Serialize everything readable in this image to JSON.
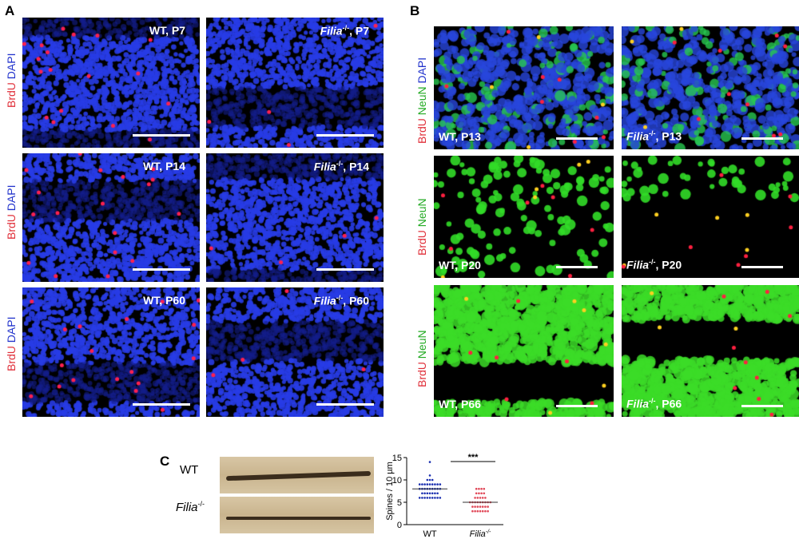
{
  "panelA": {
    "label": "A",
    "side": [
      "BrdU",
      "DAPI"
    ],
    "tiles": [
      {
        "g": "WT",
        "a": ", P7"
      },
      {
        "g": "Filia",
        "s": "-/-",
        "a": ", P7"
      },
      {
        "g": "WT",
        "a": ", P14"
      },
      {
        "g": "Filia",
        "s": "-/-",
        "a": ", P14"
      },
      {
        "g": "WT",
        "a": ", P60"
      },
      {
        "g": "Filia",
        "s": "-/-",
        "a": ", P60"
      }
    ]
  },
  "panelB": {
    "label": "B",
    "side1": [
      "BrdU",
      "NeuN",
      "DAPI"
    ],
    "side2": [
      "BrdU",
      "NeuN"
    ],
    "side3": [
      "BrdU",
      "NeuN"
    ],
    "tiles": [
      {
        "g": "WT",
        "a": ", P13"
      },
      {
        "g": "Filia",
        "s": "-/-",
        "a": ", P13"
      },
      {
        "g": "WT",
        "a": ", P20"
      },
      {
        "g": "Filia",
        "s": "-/-",
        "a": ", P20"
      },
      {
        "g": "WT",
        "a": ", P66"
      },
      {
        "g": "Filia",
        "s": "-/-",
        "a": ", P66"
      }
    ]
  },
  "panelC": {
    "label": "C",
    "row1": "WT",
    "row2": "Filia",
    "row2sup": "-/-"
  },
  "chart_data": {
    "type": "scatter",
    "ylabel": "Spines / 10 µm",
    "ylim": [
      0,
      15
    ],
    "yticks": [
      "0",
      "5",
      "10",
      "15"
    ],
    "categories": [
      "WT",
      "Filia-/-"
    ],
    "significance": "***",
    "series": [
      {
        "category": "WT",
        "color": "#1a2fb0",
        "mean": 8,
        "values": [
          14,
          11,
          10,
          10,
          10,
          9,
          9,
          9,
          9,
          9,
          9,
          9,
          9,
          9,
          8,
          8,
          8,
          8,
          8,
          8,
          8,
          8,
          8,
          7,
          7,
          7,
          7,
          7,
          7,
          7,
          6,
          6,
          6,
          6,
          6,
          6,
          6,
          6,
          6
        ]
      },
      {
        "category": "Filia-/-",
        "color": "#e04858",
        "mean": 5,
        "values": [
          8,
          8,
          8,
          8,
          7,
          7,
          7,
          7,
          6,
          6,
          6,
          6,
          6,
          5,
          5,
          5,
          5,
          5,
          5,
          5,
          5,
          5,
          4,
          4,
          4,
          4,
          4,
          4,
          4,
          3,
          3,
          3,
          3,
          3,
          3,
          3
        ]
      }
    ]
  }
}
